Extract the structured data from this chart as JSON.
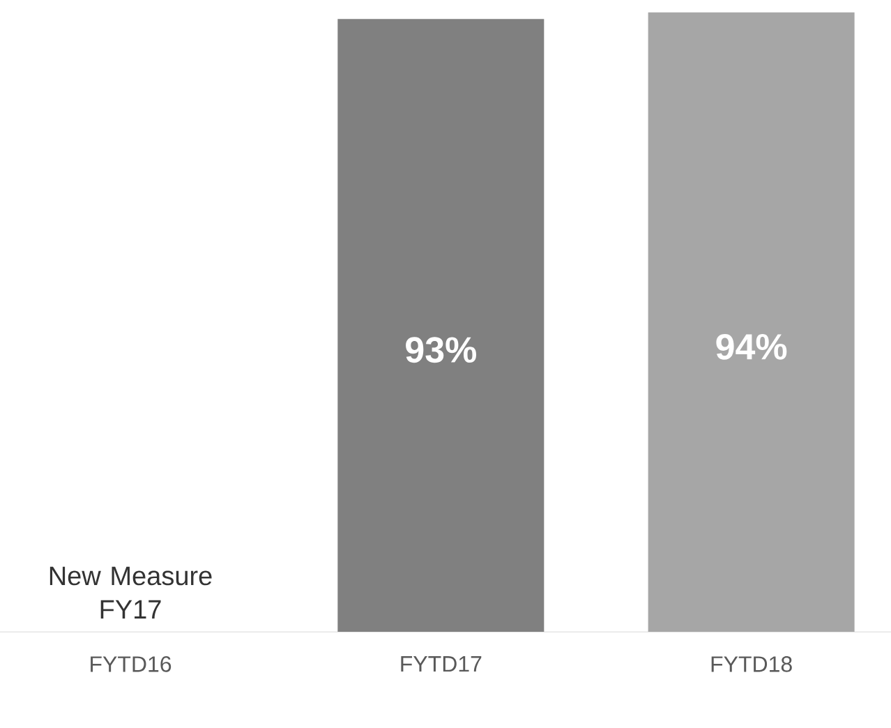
{
  "chart_data": {
    "type": "bar",
    "categories": [
      "FYTD16",
      "FYTD17",
      "FYTD18"
    ],
    "values": [
      null,
      93,
      94
    ],
    "colors": [
      "#808080",
      "#808080",
      "#a6a6a6"
    ],
    "value_labels": [
      "New Measure FY17",
      "93%",
      "94%"
    ]
  }
}
